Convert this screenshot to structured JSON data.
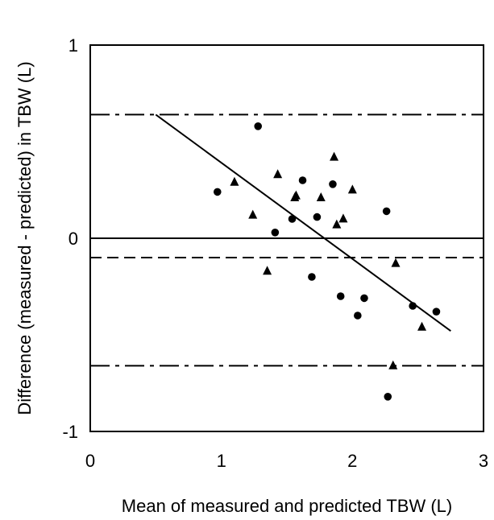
{
  "chart_data": {
    "type": "scatter",
    "xlabel": "Mean of measured and predicted TBW (L)",
    "ylabel": "Difference (measured - predicted) in TBW (L)",
    "xlim": [
      0,
      3
    ],
    "ylim": [
      -1,
      1
    ],
    "x_ticks": [
      "0",
      "1",
      "2",
      "3"
    ],
    "y_ticks": [
      "-1",
      "0",
      "1"
    ],
    "grid": false,
    "legend": "none",
    "series": [
      {
        "marker": "circle",
        "points": [
          [
            0.97,
            0.24
          ],
          [
            1.28,
            0.58
          ],
          [
            1.41,
            0.03
          ],
          [
            1.54,
            0.1
          ],
          [
            1.62,
            0.3
          ],
          [
            1.69,
            -0.2
          ],
          [
            1.73,
            0.11
          ],
          [
            1.85,
            0.28
          ],
          [
            1.91,
            -0.3
          ],
          [
            2.04,
            -0.4
          ],
          [
            2.09,
            -0.31
          ],
          [
            2.26,
            0.14
          ],
          [
            2.27,
            -0.82
          ],
          [
            2.46,
            -0.35
          ],
          [
            2.64,
            -0.38
          ]
        ]
      },
      {
        "marker": "triangle",
        "points": [
          [
            1.1,
            0.29
          ],
          [
            1.24,
            0.12
          ],
          [
            1.35,
            -0.17
          ],
          [
            1.43,
            0.33
          ],
          [
            1.56,
            0.21
          ],
          [
            1.57,
            0.22
          ],
          [
            1.76,
            0.21
          ],
          [
            1.86,
            0.42
          ],
          [
            1.88,
            0.07
          ],
          [
            1.93,
            0.1
          ],
          [
            2.0,
            0.25
          ],
          [
            2.31,
            -0.66
          ],
          [
            2.33,
            -0.13
          ],
          [
            2.53,
            -0.46
          ]
        ]
      }
    ],
    "lines": [
      {
        "kind": "regression",
        "style": "solid",
        "from": [
          0.5,
          0.64
        ],
        "to": [
          2.75,
          -0.48
        ]
      },
      {
        "kind": "zero",
        "style": "solid",
        "y": 0
      },
      {
        "kind": "mean-difference",
        "style": "dashed",
        "y": -0.1
      },
      {
        "kind": "upper-limit",
        "style": "dash-dot",
        "y": 0.64
      },
      {
        "kind": "lower-limit",
        "style": "dash-dot",
        "y": -0.66
      }
    ]
  }
}
